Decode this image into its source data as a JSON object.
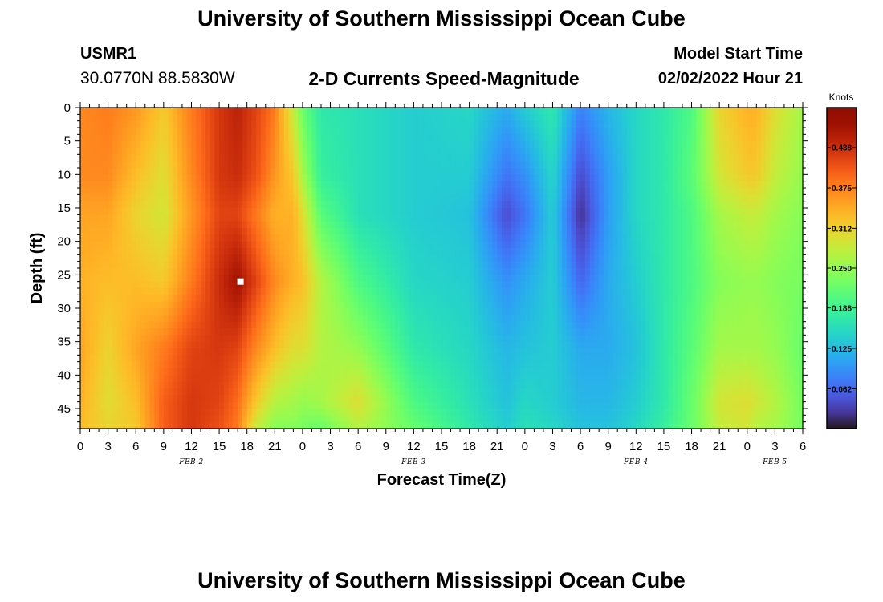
{
  "page": {
    "title": "University of Southern Mississippi Ocean Cube",
    "station_id": "USMR1",
    "station_coords": "30.0770N  88.5830W",
    "subtitle": "2-D Currents Speed-Magnitude",
    "model_start_label": "Model Start Time",
    "model_start_value": "02/02/2022 Hour 21",
    "footer_title": "University of Southern Mississippi Ocean Cube"
  },
  "chart_data": {
    "type": "heatmap",
    "title": "2-D Currents Speed-Magnitude",
    "xlabel": "Forecast Time(Z)",
    "ylabel": "Depth (ft)",
    "x_tick_labels": [
      "0",
      "3",
      "6",
      "9",
      "12",
      "15",
      "18",
      "21",
      "0",
      "3",
      "6",
      "9",
      "12",
      "15",
      "18",
      "21",
      "0",
      "3",
      "6",
      "9",
      "12",
      "15",
      "18",
      "21",
      "0",
      "3",
      "6"
    ],
    "x_range_hours": [
      0,
      78
    ],
    "date_labels": [
      {
        "text": "FEB 2",
        "hour": 12
      },
      {
        "text": "FEB 3",
        "hour": 36
      },
      {
        "text": "FEB 4",
        "hour": 60
      },
      {
        "text": "FEB 5",
        "hour": 75
      }
    ],
    "y_tick_labels": [
      "0",
      "5",
      "10",
      "15",
      "20",
      "25",
      "30",
      "35",
      "40",
      "45"
    ],
    "y_range": [
      0,
      48
    ],
    "y_inverted": true,
    "colorbar": {
      "unit": "Knots",
      "ticks": [
        "0.438",
        "0.375",
        "0.312",
        "0.250",
        "0.188",
        "0.125",
        "0.062"
      ],
      "range": [
        0,
        0.5
      ],
      "colormap": "turbo"
    },
    "field_hours": [
      0,
      3,
      6,
      9,
      12,
      15,
      17,
      19,
      21,
      23,
      24,
      26,
      30,
      36,
      42,
      46,
      48,
      51,
      54,
      57,
      60,
      63,
      66,
      69,
      72,
      73,
      75,
      78
    ],
    "field_depths": [
      0,
      10,
      16,
      26,
      36,
      44,
      48
    ],
    "speed_knots": [
      [
        0.37,
        0.37,
        0.35,
        0.34,
        0.35,
        0.34,
        0.33
      ],
      [
        0.38,
        0.37,
        0.35,
        0.33,
        0.31,
        0.3,
        0.31
      ],
      [
        0.36,
        0.33,
        0.31,
        0.33,
        0.35,
        0.33,
        0.32
      ],
      [
        0.32,
        0.3,
        0.29,
        0.32,
        0.38,
        0.4,
        0.4
      ],
      [
        0.38,
        0.37,
        0.36,
        0.38,
        0.42,
        0.43,
        0.43
      ],
      [
        0.43,
        0.43,
        0.42,
        0.44,
        0.43,
        0.42,
        0.41
      ],
      [
        0.45,
        0.44,
        0.42,
        0.47,
        0.42,
        0.39,
        0.38
      ],
      [
        0.42,
        0.41,
        0.38,
        0.42,
        0.37,
        0.32,
        0.28
      ],
      [
        0.38,
        0.36,
        0.34,
        0.37,
        0.33,
        0.27,
        0.24
      ],
      [
        0.28,
        0.32,
        0.34,
        0.34,
        0.3,
        0.26,
        0.24
      ],
      [
        0.22,
        0.26,
        0.3,
        0.33,
        0.3,
        0.25,
        0.23
      ],
      [
        0.17,
        0.18,
        0.21,
        0.27,
        0.27,
        0.26,
        0.22
      ],
      [
        0.16,
        0.16,
        0.16,
        0.2,
        0.25,
        0.3,
        0.27
      ],
      [
        0.14,
        0.14,
        0.14,
        0.15,
        0.17,
        0.2,
        0.22
      ],
      [
        0.15,
        0.14,
        0.13,
        0.14,
        0.15,
        0.16,
        0.17
      ],
      [
        0.11,
        0.07,
        0.04,
        0.09,
        0.12,
        0.13,
        0.14
      ],
      [
        0.14,
        0.09,
        0.07,
        0.11,
        0.13,
        0.15,
        0.16
      ],
      [
        0.17,
        0.15,
        0.14,
        0.14,
        0.14,
        0.14,
        0.15
      ],
      [
        0.08,
        0.04,
        0.02,
        0.06,
        0.11,
        0.12,
        0.13
      ],
      [
        0.12,
        0.1,
        0.1,
        0.11,
        0.11,
        0.12,
        0.13
      ],
      [
        0.15,
        0.15,
        0.15,
        0.14,
        0.13,
        0.14,
        0.15
      ],
      [
        0.17,
        0.17,
        0.17,
        0.17,
        0.17,
        0.17,
        0.18
      ],
      [
        0.2,
        0.21,
        0.2,
        0.2,
        0.21,
        0.22,
        0.22
      ],
      [
        0.31,
        0.29,
        0.26,
        0.24,
        0.26,
        0.29,
        0.28
      ],
      [
        0.34,
        0.32,
        0.28,
        0.25,
        0.26,
        0.3,
        0.29
      ],
      [
        0.34,
        0.32,
        0.28,
        0.25,
        0.26,
        0.29,
        0.27
      ],
      [
        0.3,
        0.28,
        0.26,
        0.24,
        0.25,
        0.27,
        0.26
      ],
      [
        0.26,
        0.25,
        0.24,
        0.23,
        0.22,
        0.23,
        0.23
      ]
    ],
    "marker": {
      "hour": 17.3,
      "depth": 26
    }
  }
}
